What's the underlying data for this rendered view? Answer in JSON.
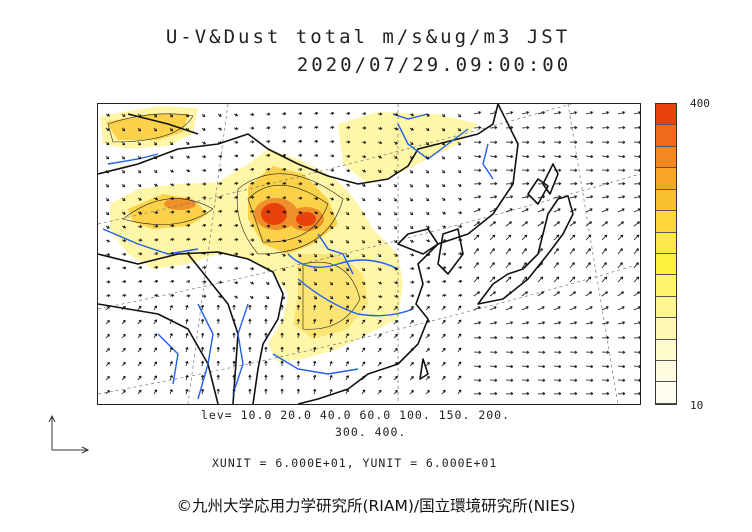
{
  "title_line1": "U-V&Dust total m/s&ug/m3 JST",
  "title_line2": "2020/07/29.09:00:00",
  "colorbar": {
    "max_label": "400",
    "min_label": "10",
    "colors": [
      "#e8420a",
      "#f06a1c",
      "#f5881e",
      "#f9a528",
      "#fbc02e",
      "#fcd63a",
      "#fde84a",
      "#fff23d",
      "#fff46a",
      "#fff58e",
      "#fff8b2",
      "#fffacc",
      "#fffbe0",
      "#fffdf0"
    ]
  },
  "levels": {
    "line1": "lev= 10.0 20.0 40.0 60.0 100. 150. 200.",
    "line2": "300. 400."
  },
  "units": "XUNIT = 6.000E+01, YUNIT = 6.000E+01",
  "credit": "©九州大学応用力学研究所(RIAM)/国立環境研究所(NIES)",
  "map_colors": {
    "coast": "#111111",
    "river": "#1f5ff2",
    "grid": "#777777",
    "dust_low": "#fff6a8",
    "dust_mid": "#fbd24a",
    "dust_high": "#f0902a",
    "dust_peak": "#e8420a"
  }
}
